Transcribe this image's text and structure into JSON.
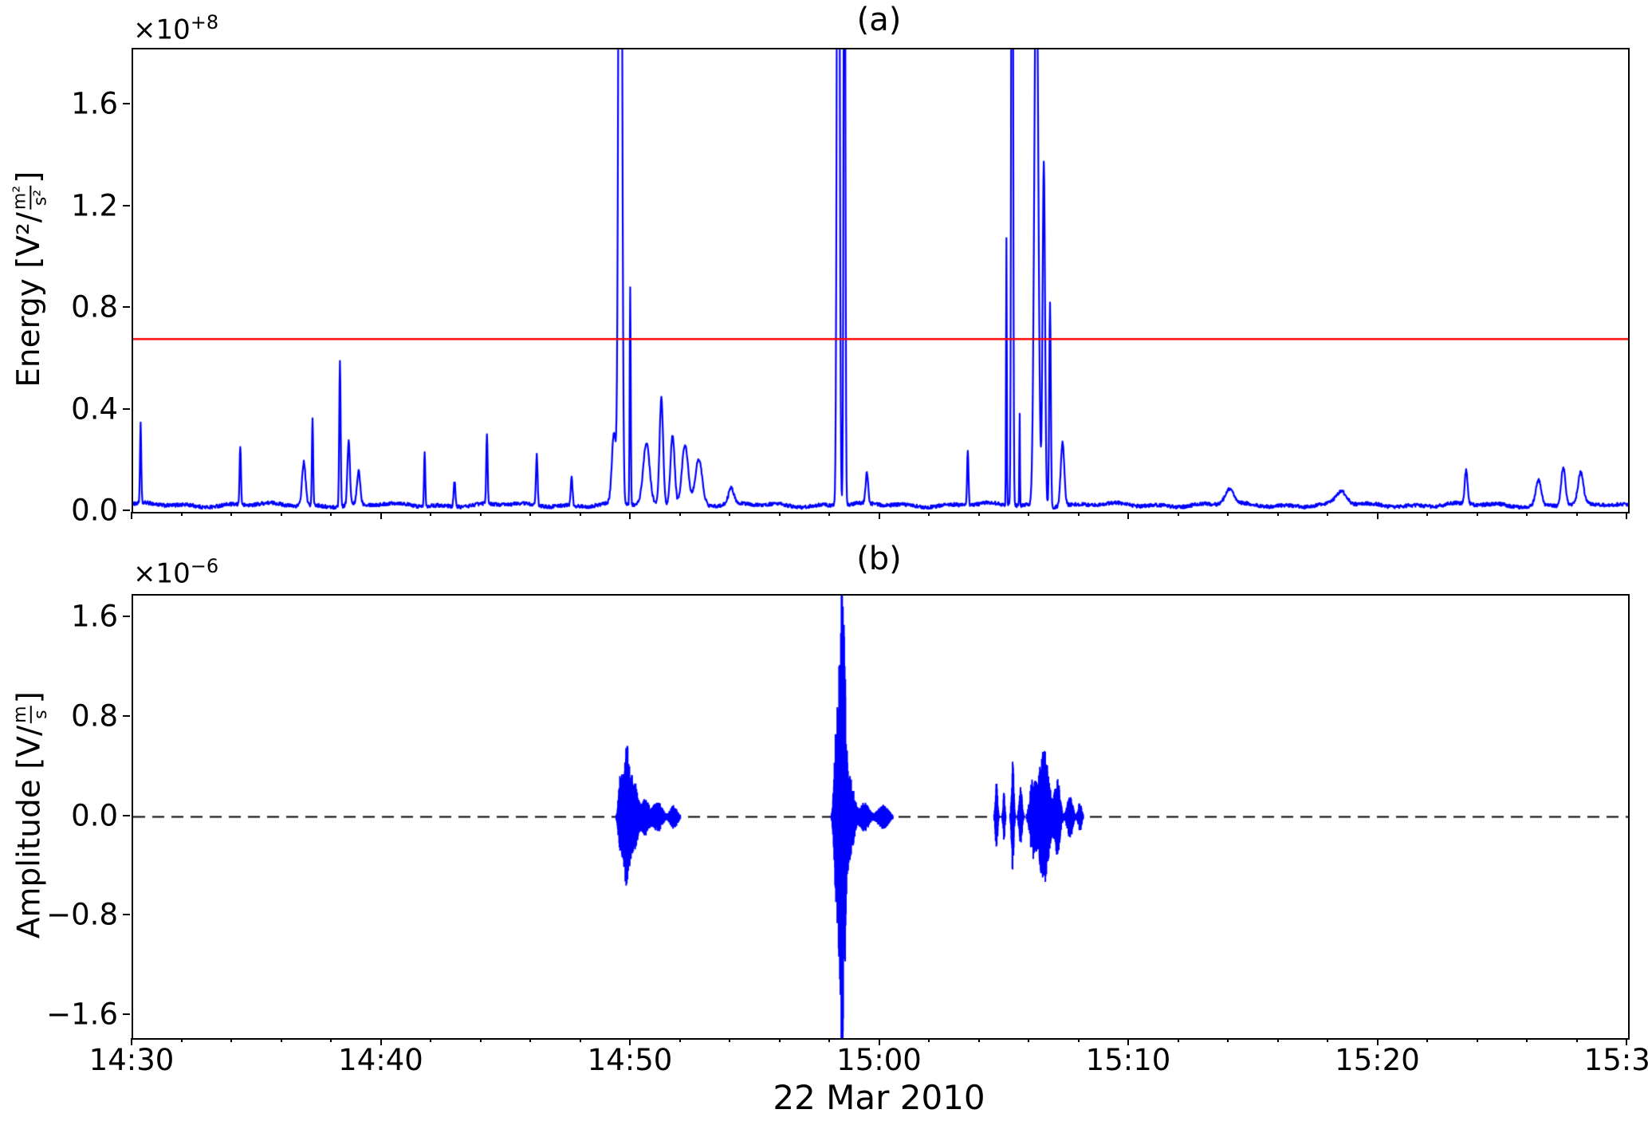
{
  "figure": {
    "xlabel": "22 Mar 2010",
    "x_range_minutes": [
      0,
      60
    ],
    "minor_tick_step_minutes": 2,
    "xticks": [
      {
        "m": 0,
        "label": "14:30"
      },
      {
        "m": 10,
        "label": "14:40"
      },
      {
        "m": 20,
        "label": "14:50"
      },
      {
        "m": 30,
        "label": "15:00"
      },
      {
        "m": 40,
        "label": "15:10"
      },
      {
        "m": 50,
        "label": "15:20"
      },
      {
        "m": 60,
        "label": "15:30"
      }
    ]
  },
  "chart_data": [
    {
      "id": "energy-panel",
      "type": "line",
      "title": "(a)",
      "ylabel": {
        "prefix": "Energy [V²/",
        "frac_num": "m²",
        "frac_den": "s²",
        "suffix": "]"
      },
      "offset": {
        "base": "×10",
        "exp": "+8"
      },
      "line_color": "#0000ff",
      "threshold": {
        "value": 0.68,
        "color": "#ff0000"
      },
      "ylim": [
        0,
        1.82
      ],
      "yticks": [
        {
          "v": 0.0,
          "label": "0.0"
        },
        {
          "v": 0.4,
          "label": "0.4"
        },
        {
          "v": 0.8,
          "label": "0.8"
        },
        {
          "v": 1.2,
          "label": "1.2"
        },
        {
          "v": 1.6,
          "label": "1.6"
        }
      ],
      "baseline": 0.02,
      "noise": 0.014,
      "spikes": [
        [
          0.3,
          0.31,
          0.035
        ],
        [
          4.3,
          0.23,
          0.04
        ],
        [
          6.85,
          0.17,
          0.1
        ],
        [
          7.2,
          0.34,
          0.035
        ],
        [
          8.3,
          0.57,
          0.04
        ],
        [
          8.65,
          0.25,
          0.07
        ],
        [
          9.05,
          0.13,
          0.09
        ],
        [
          11.7,
          0.22,
          0.035
        ],
        [
          12.9,
          0.1,
          0.05
        ],
        [
          14.2,
          0.27,
          0.04
        ],
        [
          16.2,
          0.2,
          0.045
        ],
        [
          17.6,
          0.11,
          0.05
        ],
        [
          19.3,
          0.28,
          0.12
        ],
        [
          19.55,
          4.5,
          0.085
        ],
        [
          19.95,
          0.85,
          0.03
        ],
        [
          20.6,
          0.24,
          0.18
        ],
        [
          21.2,
          0.42,
          0.1
        ],
        [
          21.65,
          0.28,
          0.12
        ],
        [
          22.15,
          0.24,
          0.18
        ],
        [
          22.7,
          0.18,
          0.2
        ],
        [
          24.0,
          0.06,
          0.15
        ],
        [
          28.3,
          4.5,
          0.065
        ],
        [
          28.55,
          3.2,
          0.045
        ],
        [
          29.45,
          0.12,
          0.07
        ],
        [
          33.5,
          0.22,
          0.04
        ],
        [
          35.05,
          1.05,
          0.022
        ],
        [
          35.28,
          4.0,
          0.045
        ],
        [
          35.58,
          0.37,
          0.018
        ],
        [
          36.25,
          2.3,
          0.11
        ],
        [
          36.55,
          1.35,
          0.07
        ],
        [
          36.8,
          0.8,
          0.045
        ],
        [
          37.3,
          0.25,
          0.1
        ],
        [
          44.0,
          0.06,
          0.25
        ],
        [
          48.5,
          0.05,
          0.3
        ],
        [
          53.5,
          0.13,
          0.08
        ],
        [
          56.4,
          0.1,
          0.15
        ],
        [
          57.4,
          0.15,
          0.12
        ],
        [
          58.1,
          0.12,
          0.15
        ]
      ]
    },
    {
      "id": "amplitude-panel",
      "type": "line",
      "title": "(b)",
      "ylabel": {
        "prefix": "Amplitude [V/",
        "frac_num": "m",
        "frac_den": "s",
        "suffix": "]"
      },
      "offset": {
        "base": "×10",
        "exp": "−6"
      },
      "line_color": "#0000ff",
      "zero_line": {
        "value": 0,
        "style": "dashed",
        "color": "#000000"
      },
      "ylim": [
        -1.78,
        1.78
      ],
      "yticks": [
        {
          "v": -1.6,
          "label": "−1.6"
        },
        {
          "v": -0.8,
          "label": "−0.8"
        },
        {
          "v": 0.0,
          "label": "0.0"
        },
        {
          "v": 0.8,
          "label": "0.8"
        },
        {
          "v": 1.6,
          "label": "1.6"
        }
      ],
      "bursts": [
        [
          19.55,
          0.1,
          0.3
        ],
        [
          19.8,
          0.16,
          0.55
        ],
        [
          20.1,
          0.2,
          0.3
        ],
        [
          20.55,
          0.2,
          0.15
        ],
        [
          21.05,
          0.25,
          0.13
        ],
        [
          21.7,
          0.2,
          0.1
        ],
        [
          28.2,
          0.1,
          0.5
        ],
        [
          28.45,
          0.17,
          1.9
        ],
        [
          28.8,
          0.2,
          0.3
        ],
        [
          29.35,
          0.25,
          0.12
        ],
        [
          30.1,
          0.3,
          0.1
        ],
        [
          34.65,
          0.06,
          0.28
        ],
        [
          34.95,
          0.05,
          0.2
        ],
        [
          35.3,
          0.06,
          0.5
        ],
        [
          35.62,
          0.08,
          0.25
        ],
        [
          36.1,
          0.15,
          0.3
        ],
        [
          36.55,
          0.28,
          0.55
        ],
        [
          37.1,
          0.15,
          0.3
        ],
        [
          37.6,
          0.15,
          0.18
        ],
        [
          38.0,
          0.1,
          0.12
        ]
      ]
    }
  ]
}
